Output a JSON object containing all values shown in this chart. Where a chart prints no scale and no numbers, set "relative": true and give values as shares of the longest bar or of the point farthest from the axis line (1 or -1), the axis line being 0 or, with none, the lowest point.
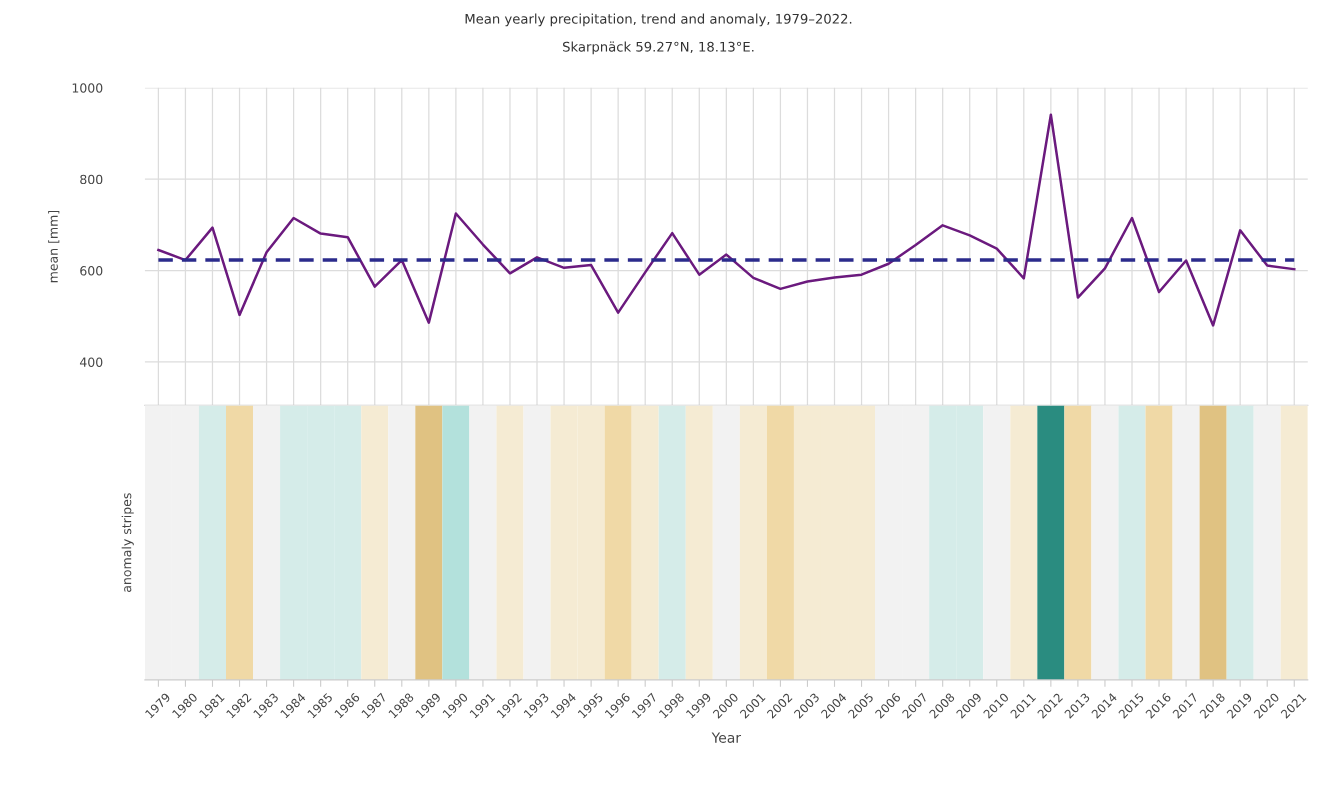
{
  "chart_data": [
    {
      "type": "line",
      "title": "Mean yearly precipitation, trend and anomaly, 1979–2022.",
      "subtitle": "Skarpnäck 59.27°N, 18.13°E.",
      "ylabel": "mean [mm]",
      "categories": [
        "1979",
        "1980",
        "1981",
        "1982",
        "1983",
        "1984",
        "1985",
        "1986",
        "1987",
        "1988",
        "1989",
        "1990",
        "1991",
        "1992",
        "1993",
        "1994",
        "1995",
        "1996",
        "1997",
        "1998",
        "1999",
        "2000",
        "2001",
        "2002",
        "2003",
        "2004",
        "2005",
        "2006",
        "2007",
        "2008",
        "2009",
        "2010",
        "2011",
        "2012",
        "2013",
        "2014",
        "2015",
        "2016",
        "2017",
        "2018",
        "2019",
        "2020",
        "2021"
      ],
      "series": [
        {
          "color": "#6b1a7e",
          "line_style": "solid",
          "values": [
            645,
            623,
            694,
            503,
            640,
            715,
            681,
            673,
            565,
            623,
            486,
            725,
            657,
            594,
            629,
            606,
            612,
            508,
            596,
            682,
            591,
            635,
            584,
            560,
            576,
            585,
            591,
            615,
            656,
            699,
            677,
            648,
            583,
            941,
            541,
            605,
            715,
            553,
            622,
            480,
            688,
            611,
            603
          ]
        },
        {
          "color": "#2b2b8c",
          "line_style": "dashed",
          "values": [
            623,
            623,
            623,
            623,
            623,
            623,
            623,
            623,
            623,
            623,
            623,
            623,
            623,
            623,
            623,
            623,
            623,
            623,
            623,
            623,
            623,
            623,
            623,
            623,
            623,
            623,
            623,
            623,
            623,
            623,
            623,
            623,
            623,
            623,
            623,
            623,
            623,
            623,
            623,
            623,
            623,
            623,
            623
          ]
        }
      ],
      "ylim": [
        305,
        1000
      ],
      "yticks": [
        400,
        600,
        800,
        1000
      ],
      "grid": true,
      "marker": "none",
      "legend": false,
      "tick_labels": "y"
    },
    {
      "type": "bar",
      "relative": true,
      "ylabel": "anomaly stripes",
      "xlabel": "Year",
      "categories": [
        "1979",
        "1980",
        "1981",
        "1982",
        "1983",
        "1984",
        "1985",
        "1986",
        "1987",
        "1988",
        "1989",
        "1990",
        "1991",
        "1992",
        "1993",
        "1994",
        "1995",
        "1996",
        "1997",
        "1998",
        "1999",
        "2000",
        "2001",
        "2002",
        "2003",
        "2004",
        "2005",
        "2006",
        "2007",
        "2008",
        "2009",
        "2010",
        "2011",
        "2012",
        "2013",
        "2014",
        "2015",
        "2016",
        "2017",
        "2018",
        "2019",
        "2020",
        "2021"
      ],
      "values": [
        1,
        1,
        1,
        1,
        1,
        1,
        1,
        1,
        1,
        1,
        1,
        1,
        1,
        1,
        1,
        1,
        1,
        1,
        1,
        1,
        1,
        1,
        1,
        1,
        1,
        1,
        1,
        1,
        1,
        1,
        1,
        1,
        1,
        1,
        1,
        1,
        1,
        1,
        1,
        1,
        1,
        1,
        1
      ],
      "colors": [
        "#f2f2f2",
        "#f2f2f2",
        "#d5ece9",
        "#f0d9a6",
        "#f2f2f2",
        "#d5ece9",
        "#d5ece9",
        "#d5ece9",
        "#f5ebd3",
        "#f2f2f2",
        "#e0c282",
        "#b3e1dc",
        "#f2f2f2",
        "#f5ebd3",
        "#f2f2f2",
        "#f5ebd3",
        "#f5ebd3",
        "#f0d9a6",
        "#f5ebd3",
        "#d5ece9",
        "#f5ebd3",
        "#f2f2f2",
        "#f5ebd3",
        "#f0d9a6",
        "#f5ebd3",
        "#f5ebd3",
        "#f5ebd3",
        "#f2f2f2",
        "#f2f2f2",
        "#d5ece9",
        "#d5ece9",
        "#f2f2f2",
        "#f5ebd3",
        "#2a8c80",
        "#f0d9a6",
        "#f2f2f2",
        "#d5ece9",
        "#f0d9a6",
        "#f2f2f2",
        "#e0c282",
        "#d5ece9",
        "#f2f2f2",
        "#f5ebd3"
      ],
      "grid": false,
      "legend": false,
      "tick_labels": "x"
    }
  ]
}
